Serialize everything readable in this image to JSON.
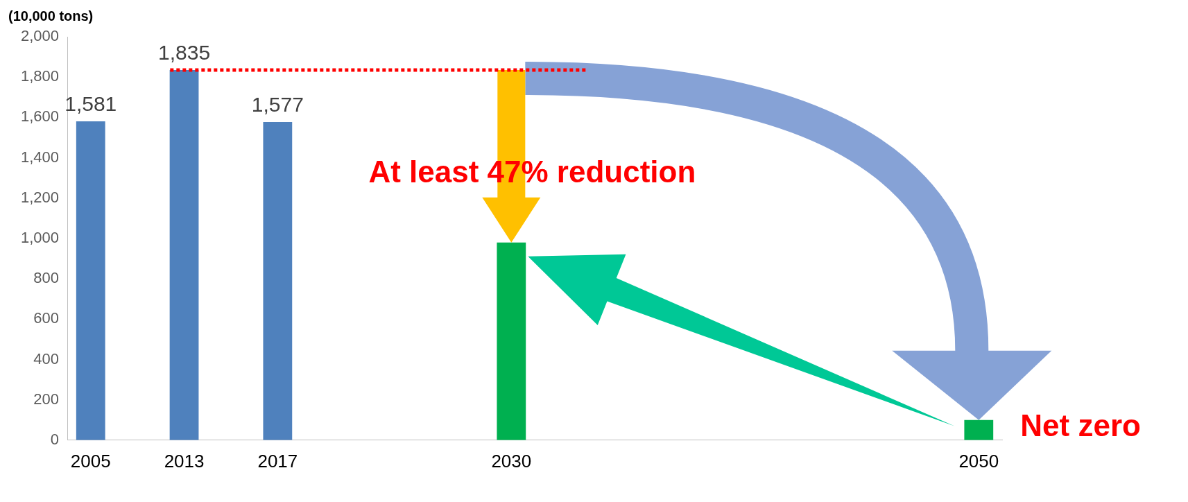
{
  "chart_data": {
    "type": "bar",
    "ylabel": "(10,000 tons)",
    "categories": [
      "2005",
      null,
      "2013",
      null,
      "2017",
      null,
      null,
      null,
      null,
      "2030",
      null,
      null,
      null,
      null,
      null,
      null,
      null,
      null,
      null,
      "2050"
    ],
    "values": [
      1581,
      null,
      1835,
      null,
      1577,
      null,
      null,
      null,
      null,
      980,
      null,
      null,
      null,
      null,
      null,
      null,
      null,
      null,
      null,
      100
    ],
    "colors": [
      "#4f81bd",
      null,
      "#4f81bd",
      null,
      "#4f81bd",
      null,
      null,
      null,
      null,
      "#00b050",
      null,
      null,
      null,
      null,
      null,
      null,
      null,
      null,
      null,
      "#00b050"
    ],
    "value_labels": [
      "1,581",
      null,
      "1,835",
      null,
      "1,577",
      null,
      null,
      null,
      null,
      null,
      null,
      null,
      null,
      null,
      null,
      null,
      null,
      null,
      null,
      null
    ],
    "ylim": [
      0,
      2000
    ],
    "yticks": [
      0,
      {
        "value": 200,
        "label": "200"
      },
      {
        "value": 400,
        "label": "400"
      },
      {
        "value": 600,
        "label": "600"
      },
      {
        "value": 800,
        "label": "800"
      },
      {
        "value": 1000,
        "label": "1,000"
      },
      {
        "value": 1200,
        "label": "1,200"
      },
      {
        "value": 1400,
        "label": "1,400"
      },
      {
        "value": 1600,
        "label": "1,600"
      },
      {
        "value": 1800,
        "label": "1,800"
      },
      {
        "value": 2000,
        "label": "2,000"
      }
    ],
    "ref_lines": [
      {
        "axis": "y",
        "value": 1835,
        "label": null,
        "color": "#ff0000",
        "line_style": "dotted"
      }
    ],
    "annotations": [
      "At least 47% reduction",
      "Net zero"
    ],
    "grid": false,
    "legend": false
  }
}
